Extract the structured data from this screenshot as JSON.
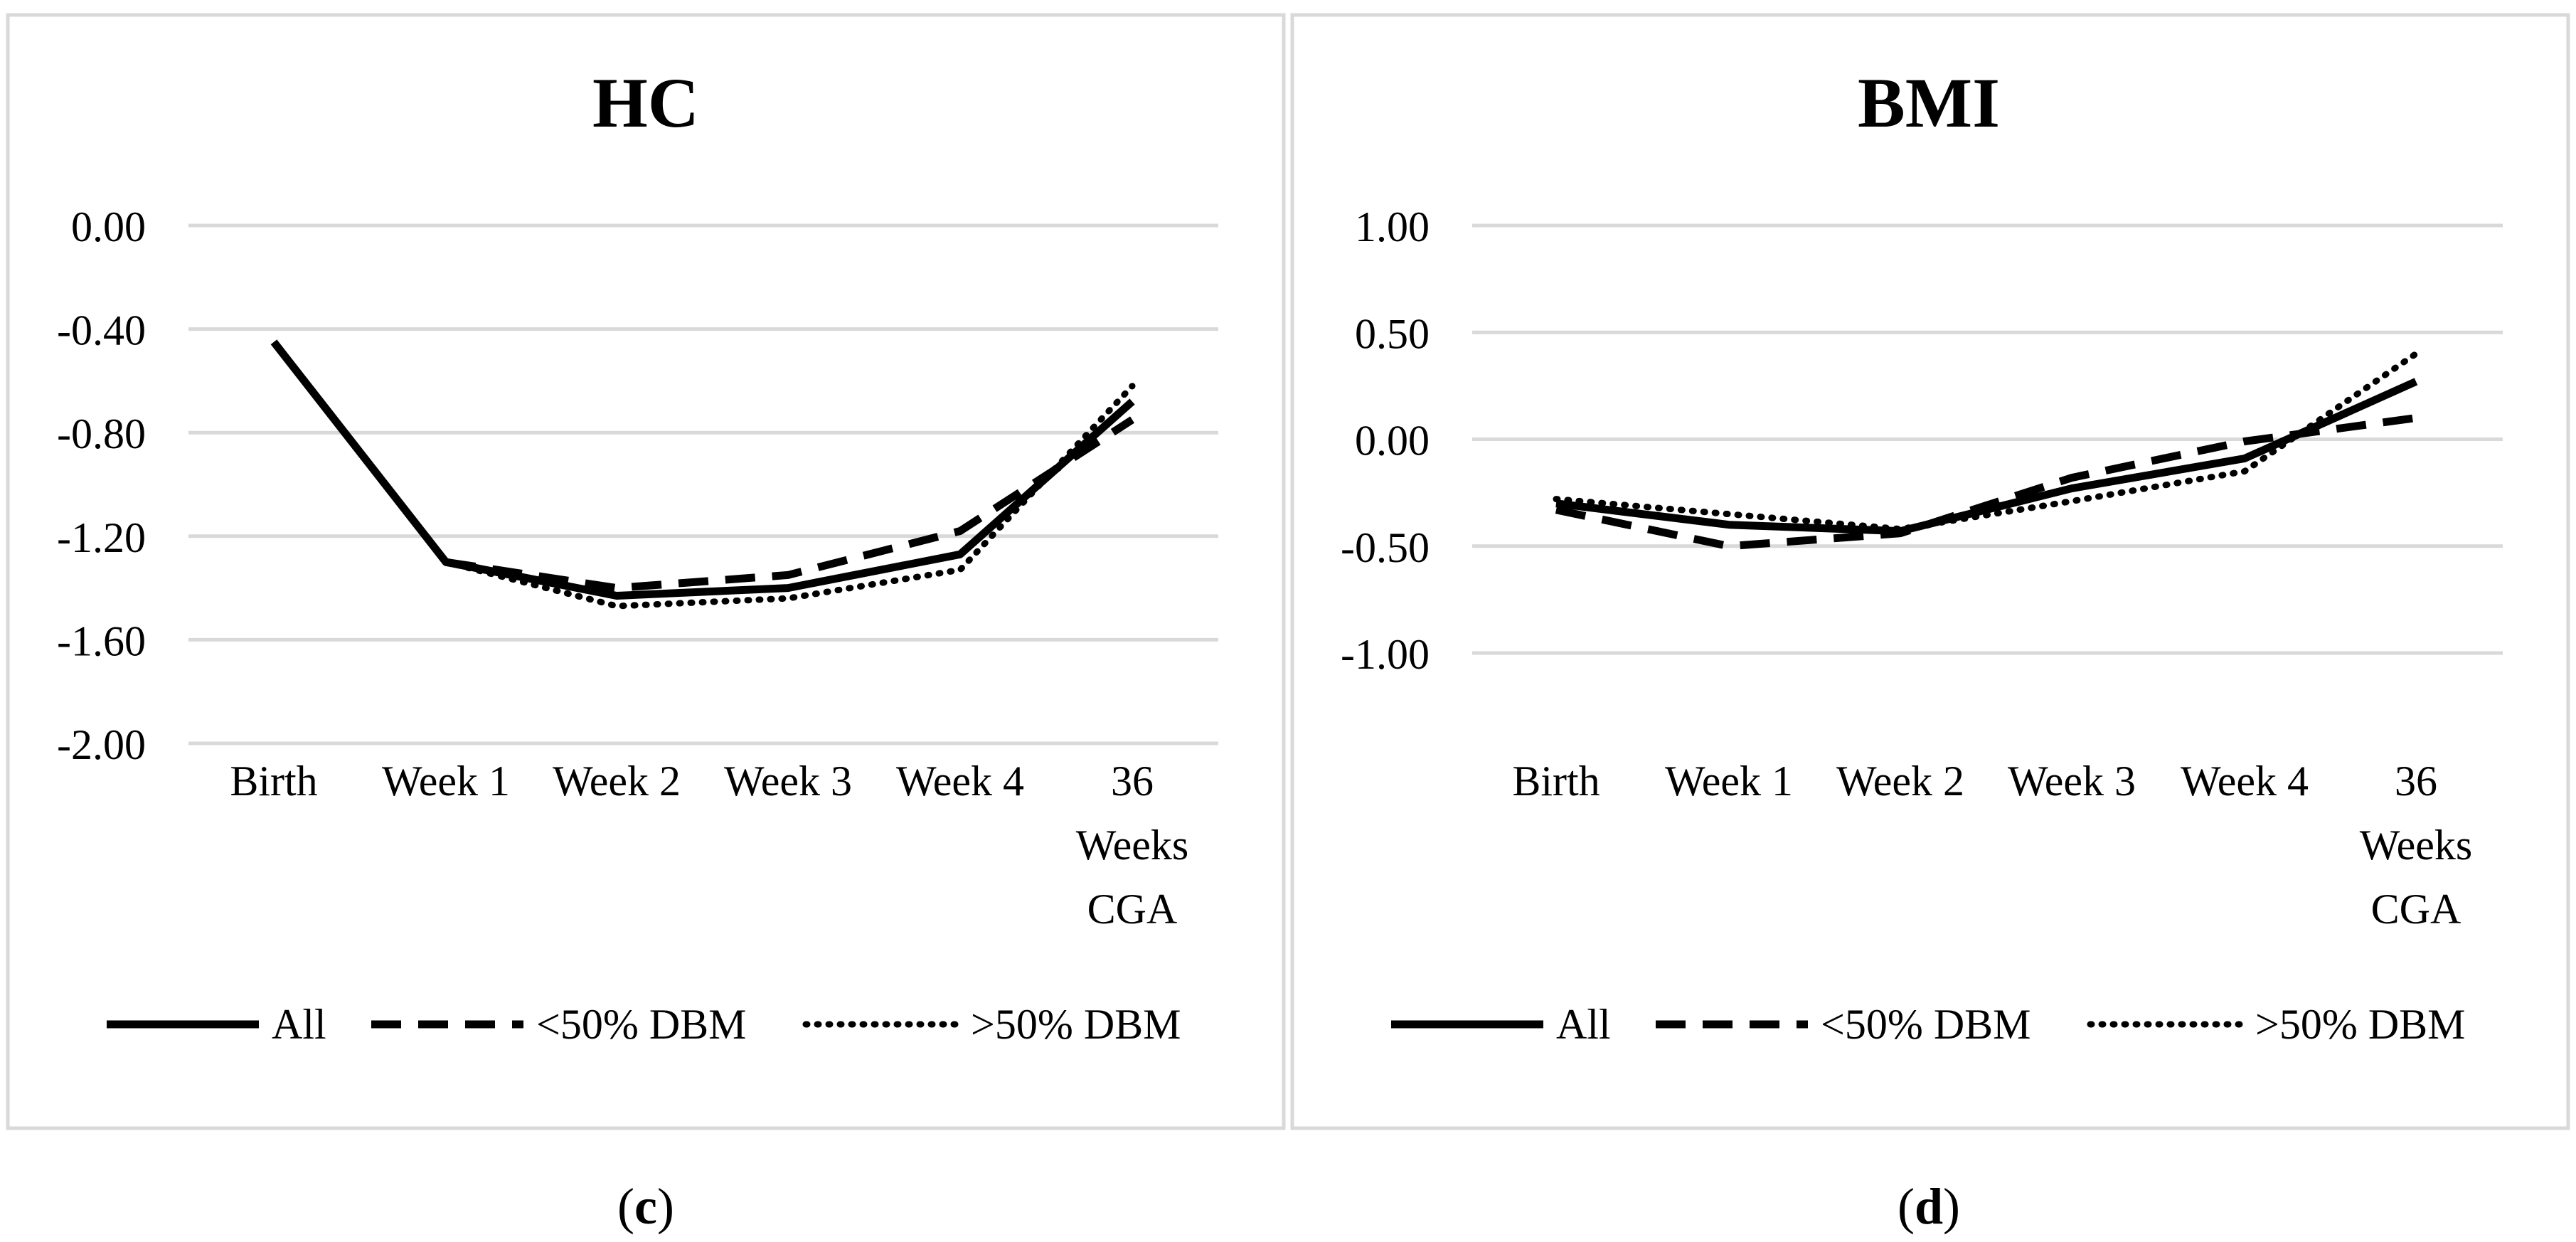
{
  "panels": [
    {
      "caption_open": "(",
      "caption_letter": "c",
      "caption_close": ")"
    },
    {
      "caption_open": "(",
      "caption_letter": "d",
      "caption_close": ")"
    }
  ],
  "chart_data": [
    {
      "type": "line",
      "title": "HC",
      "categories": [
        "Birth",
        "Week 1",
        "Week 2",
        "Week 3",
        "Week 4",
        "36 Weeks CGA"
      ],
      "category_lines": [
        [
          "Birth"
        ],
        [
          "Week 1"
        ],
        [
          "Week 2"
        ],
        [
          "Week 3"
        ],
        [
          "Week 4"
        ],
        [
          "36",
          "Weeks",
          "CGA"
        ]
      ],
      "ylim": [
        -2.0,
        0.0
      ],
      "yticks": [
        0.0,
        -0.4,
        -0.8,
        -1.2,
        -1.6,
        -2.0
      ],
      "ytick_labels": [
        "0.00",
        "-0.40",
        "-0.80",
        "-1.20",
        "-1.60",
        "-2.00"
      ],
      "xlabel": "",
      "ylabel": "",
      "grid": true,
      "legend": "bottom",
      "series": [
        {
          "name": "All",
          "style": "solid",
          "values": [
            -0.45,
            -1.3,
            -1.43,
            -1.4,
            -1.27,
            -0.68
          ]
        },
        {
          "name": "<50% DBM",
          "style": "dashed",
          "values": [
            null,
            -1.3,
            -1.4,
            -1.35,
            -1.18,
            -0.75
          ]
        },
        {
          "name": ">50% DBM",
          "style": "dotted",
          "values": [
            null,
            -1.3,
            -1.47,
            -1.44,
            -1.33,
            -0.62
          ]
        }
      ]
    },
    {
      "type": "line",
      "title": "BMI",
      "categories": [
        "Birth",
        "Week 1",
        "Week 2",
        "Week 3",
        "Week 4",
        "36 Weeks CGA"
      ],
      "category_lines": [
        [
          "Birth"
        ],
        [
          "Week 1"
        ],
        [
          "Week 2"
        ],
        [
          "Week 3"
        ],
        [
          "Week 4"
        ],
        [
          "36",
          "Weeks",
          "CGA"
        ]
      ],
      "ylim": [
        -1.0,
        1.0
      ],
      "yticks": [
        1.0,
        0.5,
        0.0,
        -0.5,
        -1.0
      ],
      "ytick_labels": [
        "1.00",
        "0.50",
        "0.00",
        "-0.50",
        "-1.00"
      ],
      "xlabel": "",
      "ylabel": "",
      "grid": true,
      "legend": "bottom",
      "series": [
        {
          "name": "All",
          "style": "solid",
          "values": [
            -0.3,
            -0.4,
            -0.43,
            -0.23,
            -0.09,
            0.27
          ]
        },
        {
          "name": "<50% DBM",
          "style": "dashed",
          "values": [
            -0.33,
            -0.5,
            -0.44,
            -0.18,
            -0.01,
            0.1
          ]
        },
        {
          "name": ">50% DBM",
          "style": "dotted",
          "values": [
            -0.28,
            -0.35,
            -0.42,
            -0.29,
            -0.15,
            0.4
          ]
        }
      ]
    }
  ]
}
